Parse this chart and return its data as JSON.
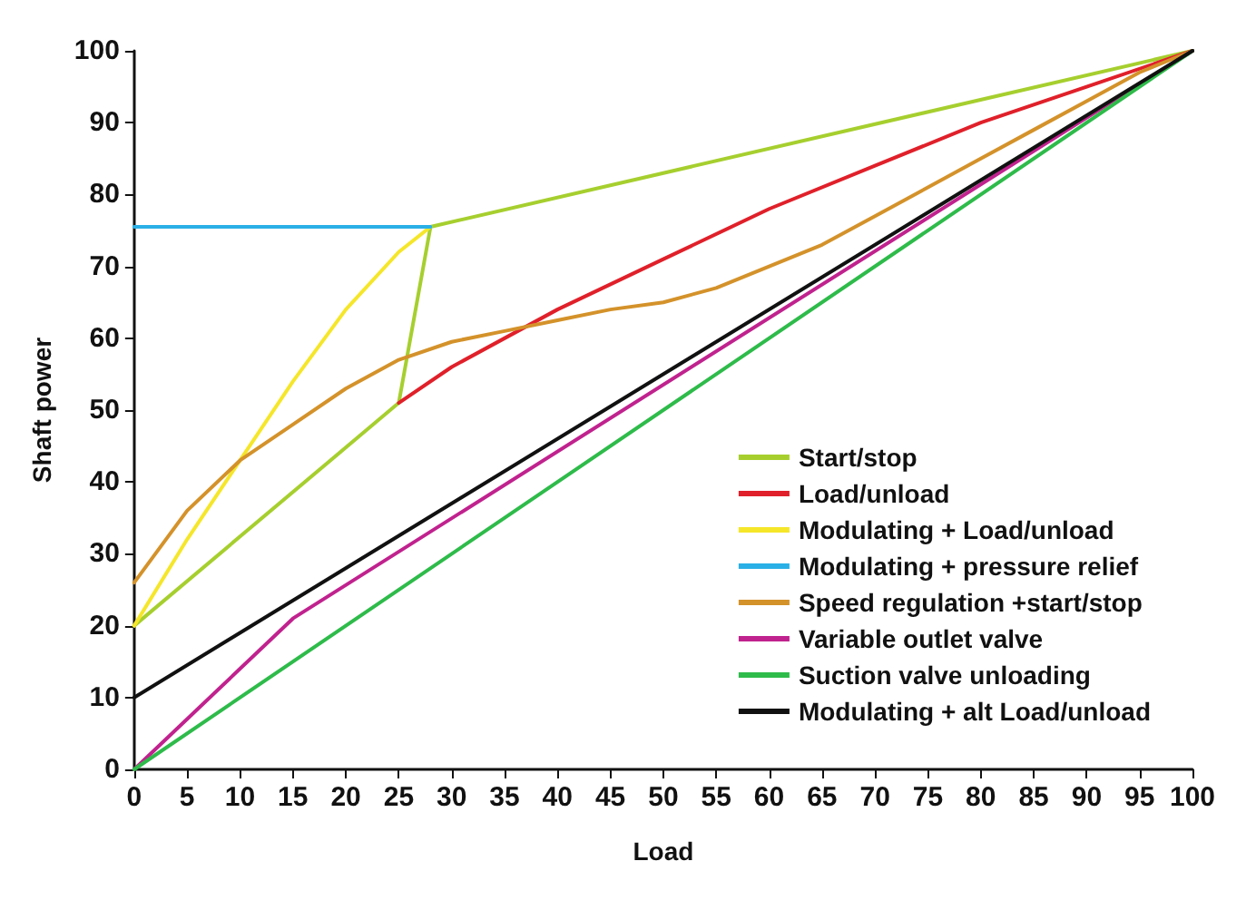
{
  "chart_data": {
    "type": "line",
    "xlabel": "Load",
    "ylabel": "Shaft power",
    "xlim": [
      0,
      100
    ],
    "ylim": [
      0,
      100
    ],
    "xticks": [
      0,
      5,
      10,
      15,
      20,
      25,
      30,
      35,
      40,
      45,
      50,
      55,
      60,
      65,
      70,
      75,
      80,
      85,
      90,
      95,
      100
    ],
    "yticks": [
      0,
      10,
      20,
      30,
      40,
      50,
      60,
      70,
      80,
      90,
      100
    ],
    "grid": false,
    "legend": "bottom right",
    "series": [
      {
        "name": "Start/stop",
        "color": "#a6cf2e",
        "x": [
          0,
          25,
          28,
          100
        ],
        "values": [
          20,
          51,
          75.5,
          100
        ]
      },
      {
        "name": "Load/unload",
        "color": "#e0202a",
        "x": [
          25,
          30,
          40,
          50,
          60,
          70,
          80,
          90,
          100
        ],
        "values": [
          51,
          56,
          64,
          71,
          78,
          84,
          90,
          95,
          100
        ]
      },
      {
        "name": "Modulating + Load/unload",
        "color": "#f5e62a",
        "x": [
          0,
          5,
          10,
          15,
          20,
          25,
          28
        ],
        "values": [
          20,
          32,
          43,
          54,
          64,
          72,
          75.5
        ]
      },
      {
        "name": "Modulating + pressure relief",
        "color": "#2ab0e6",
        "x": [
          0,
          28
        ],
        "values": [
          75.5,
          75.5
        ]
      },
      {
        "name": "Speed regulation +start/stop",
        "color": "#d4922a",
        "x": [
          0,
          5,
          10,
          15,
          20,
          25,
          30,
          35,
          40,
          45,
          50,
          55,
          60,
          65,
          70,
          75,
          80,
          85,
          90,
          95,
          100
        ],
        "values": [
          26,
          36,
          43,
          48,
          53,
          57,
          59.5,
          61,
          62.5,
          64,
          65,
          67,
          70,
          73,
          77,
          81,
          85,
          89,
          93,
          97,
          100
        ]
      },
      {
        "name": "Variable outlet valve",
        "color": "#c0228e",
        "x": [
          0,
          15,
          100
        ],
        "values": [
          0,
          21,
          100
        ]
      },
      {
        "name": "Suction valve unloading",
        "color": "#2ebb4a",
        "x": [
          0,
          100
        ],
        "values": [
          0,
          100
        ]
      },
      {
        "name": "Modulating + alt Load/unload",
        "color": "#111111",
        "x": [
          0,
          100
        ],
        "values": [
          10,
          100
        ]
      }
    ]
  }
}
